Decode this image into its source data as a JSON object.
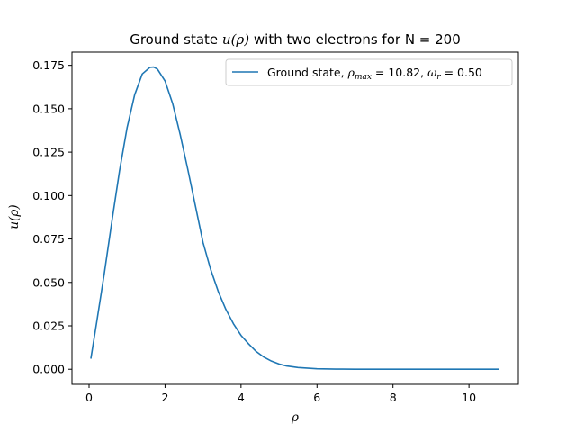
{
  "chart_data": {
    "type": "line",
    "title": {
      "prefix": "Ground state ",
      "math": "u(ρ)",
      "suffix": " with two electrons for N = 200"
    },
    "xlabel": "ρ",
    "ylabel": "u(ρ)",
    "xlim": [
      -0.45,
      11.3
    ],
    "ylim": [
      -0.0087,
      0.1826
    ],
    "xticks": [
      0,
      2,
      4,
      6,
      8,
      10
    ],
    "xtick_labels": [
      "0",
      "2",
      "4",
      "6",
      "8",
      "10"
    ],
    "yticks": [
      0.0,
      0.025,
      0.05,
      0.075,
      0.1,
      0.125,
      0.15,
      0.175
    ],
    "ytick_labels": [
      "0.000",
      "0.025",
      "0.050",
      "0.075",
      "0.100",
      "0.125",
      "0.150",
      "0.175"
    ],
    "grid": false,
    "legend_position": "top-right",
    "legend": {
      "prefix": "Ground state, ",
      "rho_symbol": "ρ",
      "rho_sub": "max",
      "rho_value": " = 10.82, ",
      "omega_symbol": "ω",
      "omega_sub": "r",
      "omega_value": " = 0.50"
    },
    "series": [
      {
        "color": "#1f77b4",
        "x": [
          0.05,
          0.2,
          0.4,
          0.6,
          0.8,
          1.0,
          1.2,
          1.4,
          1.6,
          1.7,
          1.8,
          2.0,
          2.2,
          2.4,
          2.6,
          2.8,
          3.0,
          3.2,
          3.4,
          3.6,
          3.8,
          4.0,
          4.2,
          4.4,
          4.6,
          4.8,
          5.0,
          5.2,
          5.5,
          6.0,
          6.5,
          7.0,
          8.0,
          9.0,
          10.0,
          10.78
        ],
        "y": [
          0.0065,
          0.027,
          0.055,
          0.085,
          0.114,
          0.139,
          0.158,
          0.17,
          0.1738,
          0.174,
          0.1728,
          0.166,
          0.153,
          0.135,
          0.115,
          0.094,
          0.073,
          0.0575,
          0.0448,
          0.0345,
          0.0262,
          0.0195,
          0.0146,
          0.0102,
          0.007,
          0.0047,
          0.003,
          0.0019,
          0.001,
          0.0003,
          0.0001,
          3e-05,
          0.0,
          0.0,
          0.0,
          0.0
        ]
      }
    ]
  }
}
